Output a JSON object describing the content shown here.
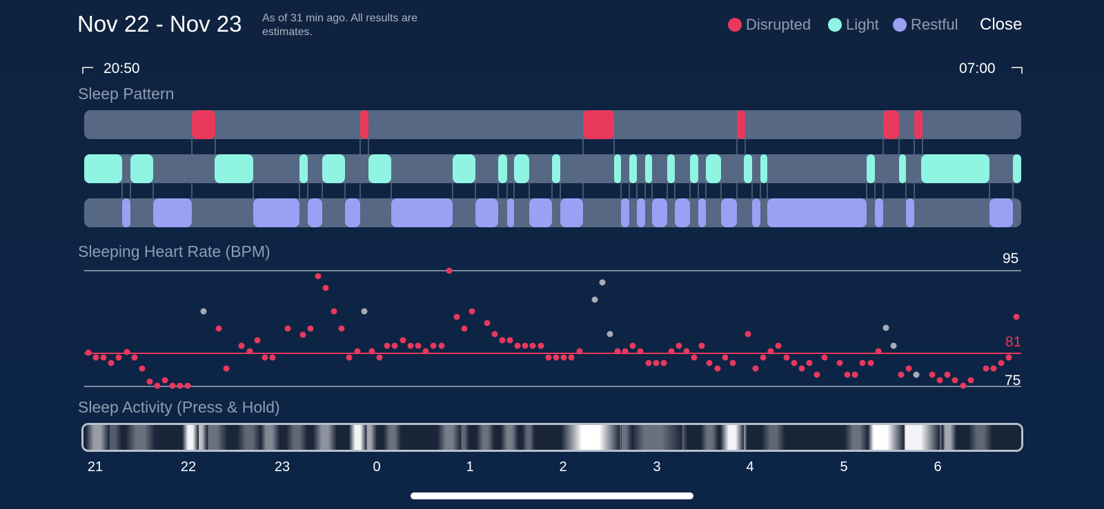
{
  "header": {
    "title": "Nov 22 - Nov 23",
    "as_of": "As of 31 min ago. All results are estimates.",
    "close_label": "Close"
  },
  "legend": [
    {
      "label": "Disrupted",
      "color": "#e8395d"
    },
    {
      "label": "Light",
      "color": "#8ff5e2"
    },
    {
      "label": "Restful",
      "color": "#9aa0f3"
    }
  ],
  "time_range": {
    "start": "20:50",
    "end": "07:00"
  },
  "sleep_pattern": {
    "title": "Sleep Pattern",
    "disrupted_color": "#e8395d",
    "light_color": "#8ff5e2",
    "restful_color": "#9aa0f3"
  },
  "heart_rate": {
    "title": "Sleeping Heart Rate (BPM)",
    "max_label": "95",
    "avg_label": "81",
    "min_label": "75",
    "max": 95,
    "avg": 81,
    "min": 75
  },
  "activity": {
    "title": "Sleep Activity (Press & Hold)"
  },
  "hour_ticks": [
    "21",
    "22",
    "23",
    "0",
    "1",
    "2",
    "3",
    "4",
    "5",
    "6"
  ]
}
